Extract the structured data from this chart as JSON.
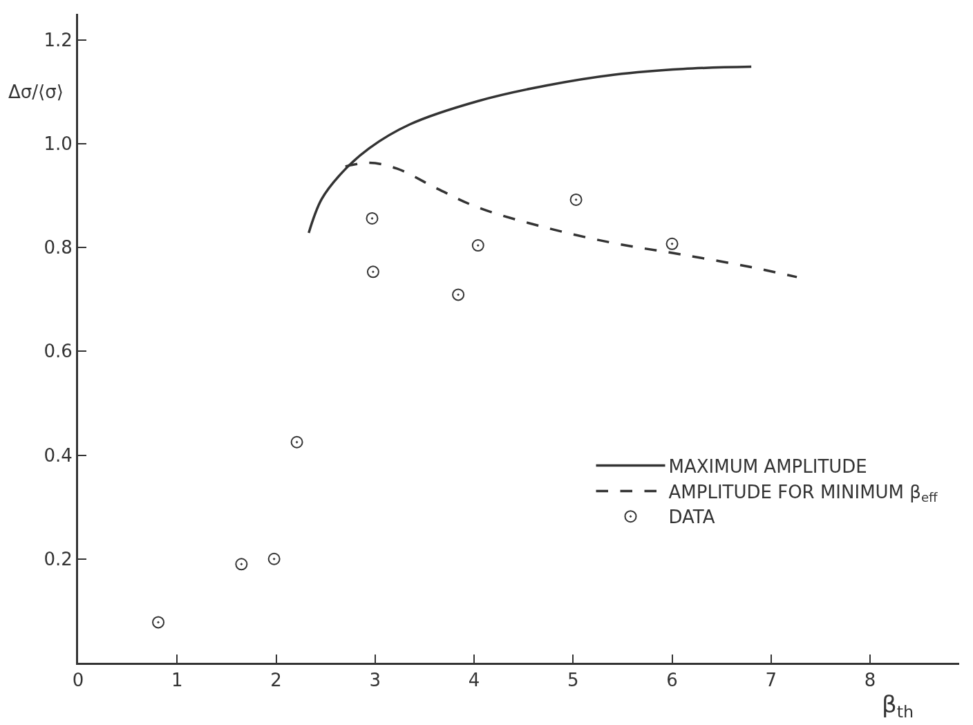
{
  "chart_data": {
    "type": "scatter",
    "xlabel": "β$_{th}$",
    "ylabel": "Δσ/⟨σ⟩",
    "xlim": [
      0,
      8.9
    ],
    "ylim": [
      0,
      1.25
    ],
    "xticks": [
      0,
      1,
      2,
      3,
      4,
      5,
      6,
      7,
      8
    ],
    "yticks": [
      0.2,
      0.4,
      0.6,
      0.8,
      {
        "value": 1.0,
        "label": "1.0"
      },
      {
        "value": 1.2,
        "label": "1.2"
      }
    ],
    "legend": "bottom right",
    "series": [
      {
        "name": "MAXIMUM AMPLITUDE",
        "type": "line",
        "line_style": "solid",
        "color": "#333333",
        "x": [
          2.33,
          2.46,
          2.67,
          2.94,
          3.35,
          4.04,
          4.73,
          5.42,
          6.11,
          6.8
        ],
        "values": [
          0.828,
          0.893,
          0.945,
          0.991,
          1.037,
          1.082,
          1.112,
          1.133,
          1.144,
          1.148
        ]
      },
      {
        "name": "AMPLITUDE FOR MINIMUM β$_{eff}$",
        "type": "line",
        "line_style": "dashed",
        "color": "#333333",
        "x": [
          2.7,
          2.94,
          3.22,
          3.63,
          4.04,
          4.73,
          5.42,
          6.11,
          6.8,
          7.26
        ],
        "values": [
          0.956,
          0.963,
          0.952,
          0.913,
          0.877,
          0.838,
          0.808,
          0.786,
          0.762,
          0.743
        ]
      },
      {
        "name": "DATA",
        "marker": "circle",
        "color": "#333333",
        "x": [
          0.81,
          1.65,
          1.98,
          2.21,
          2.97,
          2.98,
          3.84,
          4.04,
          5.03,
          6.0
        ],
        "values": [
          0.078,
          0.19,
          0.2,
          0.425,
          0.856,
          0.753,
          0.709,
          0.804,
          0.892,
          0.807
        ]
      }
    ]
  }
}
